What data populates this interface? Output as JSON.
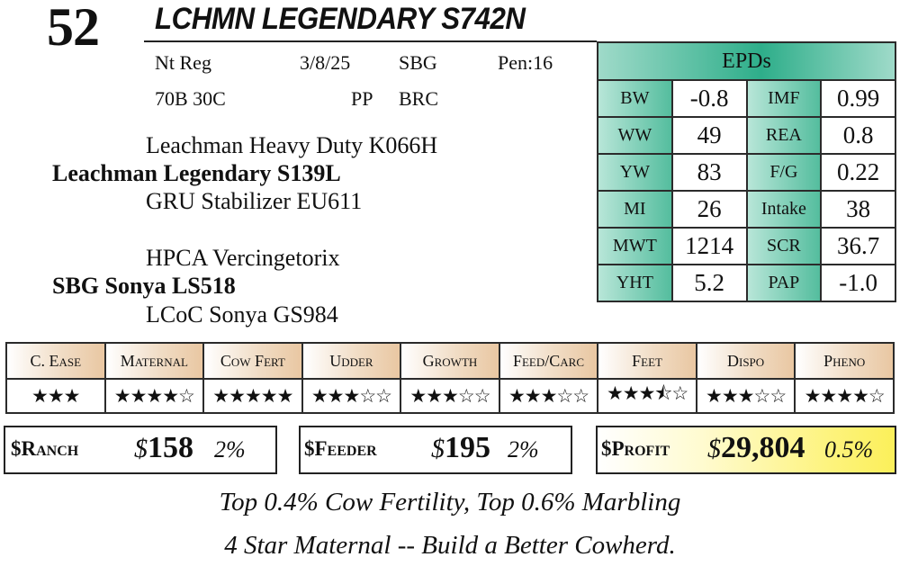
{
  "header": {
    "lot": "52",
    "name": "LCHMN LEGENDARY S742N"
  },
  "info": {
    "registration": "Nt Reg",
    "birth_date": "3/8/25",
    "breeder": "SBG",
    "pen": "Pen:16",
    "composition": "70B 30C",
    "polled": "PP",
    "color": "BRC"
  },
  "pedigree": {
    "sire": "Leachman Legendary S139L",
    "sire_sire": "Leachman Heavy Duty K066H",
    "sire_dam": "GRU Stabilizer EU611",
    "dam": "SBG Sonya LS518",
    "dam_sire": "HPCA Vercingetorix",
    "dam_dam": "LCoC Sonya GS984"
  },
  "epds": {
    "title": "EPDs",
    "rows": [
      [
        {
          "label": "BW",
          "value": "-0.8"
        },
        {
          "label": "IMF",
          "value": "0.99"
        }
      ],
      [
        {
          "label": "WW",
          "value": "49"
        },
        {
          "label": "REA",
          "value": "0.8"
        }
      ],
      [
        {
          "label": "YW",
          "value": "83"
        },
        {
          "label": "F/G",
          "value": "0.22"
        }
      ],
      [
        {
          "label": "MI",
          "value": "26"
        },
        {
          "label": "Intake",
          "value": "38"
        }
      ],
      [
        {
          "label": "MWT",
          "value": "1214"
        },
        {
          "label": "SCR",
          "value": "36.7"
        }
      ],
      [
        {
          "label": "YHT",
          "value": "5.2"
        },
        {
          "label": "PAP",
          "value": "-1.0"
        }
      ]
    ]
  },
  "star_ratings": [
    {
      "label": "C. Ease",
      "stars": "★★★",
      "value": 3
    },
    {
      "label": "Maternal",
      "stars": "★★★★☆",
      "value": 4
    },
    {
      "label": "Cow Fert",
      "stars": "★★★★★",
      "value": 5
    },
    {
      "label": "Udder",
      "stars": "★★★☆☆",
      "value": 3
    },
    {
      "label": "Growth",
      "stars": "★★★☆☆",
      "value": 3
    },
    {
      "label": "Feed/Carc",
      "stars": "★★★☆☆",
      "value": 3
    },
    {
      "label": "Feet",
      "stars": "★★★⯪☆",
      "value": 3.5
    },
    {
      "label": "Dispo",
      "stars": "★★★☆☆",
      "value": 3
    },
    {
      "label": "Pheno",
      "stars": "★★★★☆",
      "value": 4
    }
  ],
  "indexes": {
    "ranch": {
      "label": "$Ranch",
      "currency": "$",
      "value": "158",
      "percentile": "2%"
    },
    "feeder": {
      "label": "$Feeder",
      "currency": "$",
      "value": "195",
      "percentile": "2%"
    },
    "profit": {
      "label": "$Profit",
      "currency": "$",
      "value": "29,804",
      "percentile": "0.5%"
    },
    "accent": "#fbef5a"
  },
  "notes": {
    "line1": "Top 0.4% Cow Fertility, Top 0.6% Marbling",
    "line2": "4 Star Maternal -- Build a Better Cowherd."
  },
  "colors": {
    "epd_teal": "#2eae8a",
    "trait_tan": "#e9c7a2",
    "profit_yellow": "#fbef5a"
  }
}
